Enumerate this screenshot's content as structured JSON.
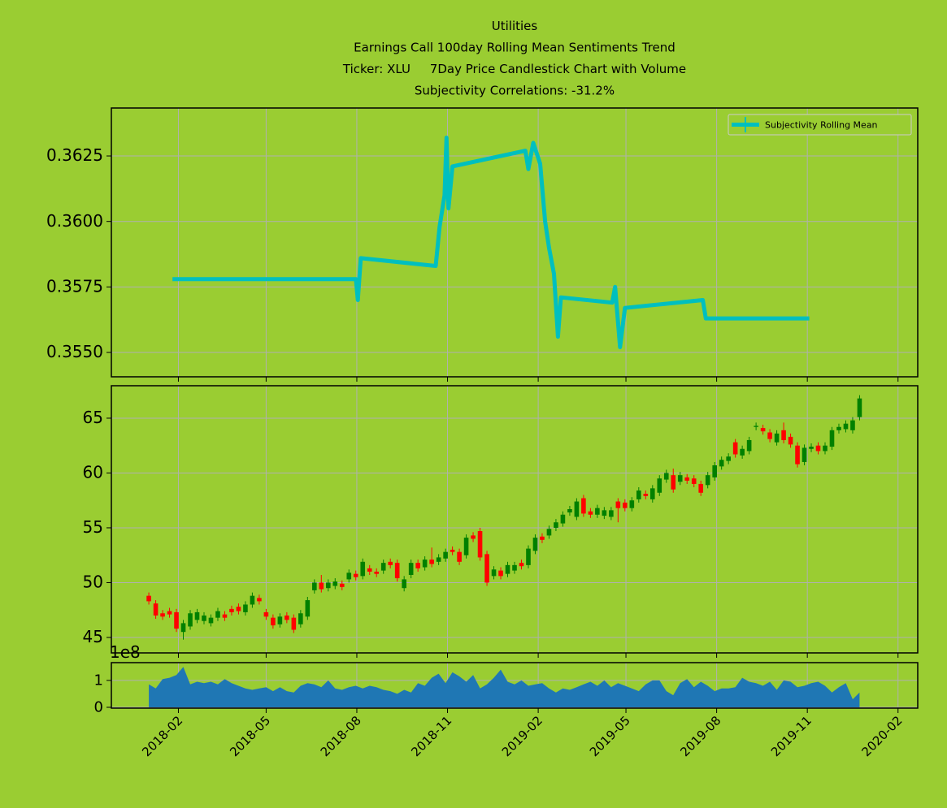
{
  "chart_data": [
    {
      "type": "line",
      "title": [
        "Utilities",
        "Earnings Call 100day Rolling Mean Sentiments Trend",
        "Ticker: XLU     7Day Price Candlestick Chart with Volume",
        "Subjectivity Correlations: -31.2%"
      ],
      "x": [
        "2018-01-26",
        "2018-07-31",
        "2018-08-02",
        "2018-08-05",
        "2018-10-20",
        "2018-10-24",
        "2018-10-29",
        "2018-10-31",
        "2018-11-02",
        "2018-11-06",
        "2019-01-19",
        "2019-01-22",
        "2019-01-27",
        "2019-02-03",
        "2019-02-08",
        "2019-02-12",
        "2019-02-17",
        "2019-02-21",
        "2019-02-24",
        "2019-04-17",
        "2019-04-20",
        "2019-04-25",
        "2019-04-30",
        "2019-07-18",
        "2019-07-21",
        "2019-11-03"
      ],
      "series": [
        {
          "name": "Subjectivity Rolling Mean",
          "color": "#00bfbf",
          "values": [
            0.3578,
            0.3578,
            0.357,
            0.3586,
            0.3583,
            0.3598,
            0.361,
            0.3632,
            0.3605,
            0.3621,
            0.3627,
            0.362,
            0.363,
            0.3622,
            0.36,
            0.359,
            0.358,
            0.3556,
            0.3571,
            0.3569,
            0.3575,
            0.3552,
            0.3567,
            0.357,
            0.3563,
            0.3563
          ]
        }
      ],
      "xlim": [
        "2017-11-25",
        "2020-02-21"
      ],
      "xticks": [
        "2018-02-01",
        "2018-05-01",
        "2018-08-01",
        "2018-11-01",
        "2019-02-01",
        "2019-05-01",
        "2019-08-01",
        "2019-11-01",
        "2020-02-01"
      ],
      "ylim": [
        0.35407,
        0.36433
      ],
      "yticks": [
        {
          "value": 0.355,
          "label": "0.3550"
        },
        0.3575,
        {
          "value": 0.36,
          "label": "0.3600"
        },
        0.3625
      ],
      "grid": true,
      "legend": "upper right"
    },
    {
      "type": "candlestick",
      "x": [
        "2018-01-02",
        "2018-01-09",
        "2018-01-16",
        "2018-01-23",
        "2018-01-30",
        "2018-02-06",
        "2018-02-13",
        "2018-02-20",
        "2018-02-27",
        "2018-03-06",
        "2018-03-13",
        "2018-03-20",
        "2018-03-27",
        "2018-04-03",
        "2018-04-10",
        "2018-04-17",
        "2018-04-24",
        "2018-05-01",
        "2018-05-08",
        "2018-05-15",
        "2018-05-22",
        "2018-05-29",
        "2018-06-05",
        "2018-06-12",
        "2018-06-19",
        "2018-06-26",
        "2018-07-03",
        "2018-07-10",
        "2018-07-17",
        "2018-07-24",
        "2018-07-31",
        "2018-08-07",
        "2018-08-14",
        "2018-08-21",
        "2018-08-28",
        "2018-09-04",
        "2018-09-11",
        "2018-09-18",
        "2018-09-25",
        "2018-10-02",
        "2018-10-09",
        "2018-10-16",
        "2018-10-23",
        "2018-10-30",
        "2018-11-06",
        "2018-11-13",
        "2018-11-20",
        "2018-11-27",
        "2018-12-04",
        "2018-12-11",
        "2018-12-18",
        "2018-12-25",
        "2019-01-01",
        "2019-01-08",
        "2019-01-15",
        "2019-01-22",
        "2019-01-29",
        "2019-02-05",
        "2019-02-12",
        "2019-02-19",
        "2019-02-26",
        "2019-03-05",
        "2019-03-12",
        "2019-03-19",
        "2019-03-26",
        "2019-04-02",
        "2019-04-09",
        "2019-04-16",
        "2019-04-23",
        "2019-04-30",
        "2019-05-07",
        "2019-05-14",
        "2019-05-21",
        "2019-05-28",
        "2019-06-04",
        "2019-06-11",
        "2019-06-18",
        "2019-06-25",
        "2019-07-02",
        "2019-07-09",
        "2019-07-16",
        "2019-07-23",
        "2019-07-30",
        "2019-08-06",
        "2019-08-13",
        "2019-08-20",
        "2019-08-27",
        "2019-09-03",
        "2019-09-10",
        "2019-09-17",
        "2019-09-24",
        "2019-10-01",
        "2019-10-08",
        "2019-10-15",
        "2019-10-22",
        "2019-10-29",
        "2019-11-05",
        "2019-11-12",
        "2019-11-19",
        "2019-11-26",
        "2019-12-03",
        "2019-12-10",
        "2019-12-17",
        "2019-12-24"
      ],
      "open": [
        48.8,
        48.1,
        47.2,
        47.4,
        47.3,
        45.5,
        46.0,
        46.6,
        46.5,
        46.3,
        46.8,
        47.1,
        47.6,
        47.8,
        47.3,
        48.0,
        48.6,
        47.3,
        46.8,
        46.2,
        47.0,
        46.8,
        46.2,
        46.9,
        49.3,
        50.0,
        49.5,
        49.7,
        49.9,
        50.3,
        50.8,
        50.6,
        51.3,
        51.0,
        51.1,
        51.9,
        51.8,
        49.5,
        50.7,
        51.8,
        51.4,
        52.1,
        51.9,
        52.2,
        53.0,
        52.8,
        52.5,
        54.3,
        54.7,
        52.6,
        50.6,
        51.1,
        50.8,
        51.1,
        51.8,
        51.6,
        52.9,
        54.2,
        54.3,
        55.0,
        55.4,
        56.4,
        56.0,
        57.7,
        56.5,
        56.2,
        56.1,
        56.0,
        57.4,
        57.3,
        56.8,
        57.6,
        58.1,
        57.6,
        58.2,
        59.4,
        59.8,
        59.2,
        59.6,
        59.5,
        59.0,
        58.9,
        59.6,
        60.6,
        61.1,
        62.8,
        61.6,
        62.0,
        64.2,
        64.1,
        63.7,
        62.8,
        63.9,
        63.3,
        62.5,
        61.0,
        62.2,
        62.5,
        62.0,
        62.4,
        63.9,
        64.0,
        63.9,
        65.1
      ],
      "high": [
        49.1,
        48.4,
        47.5,
        47.7,
        47.6,
        46.6,
        47.5,
        47.6,
        47.3,
        47.1,
        47.7,
        47.4,
        47.9,
        48.1,
        48.3,
        49.1,
        48.9,
        47.6,
        47.1,
        47.2,
        47.3,
        47.1,
        47.5,
        48.7,
        50.3,
        50.7,
        50.3,
        50.4,
        50.2,
        51.2,
        51.1,
        52.2,
        51.6,
        51.3,
        52.1,
        52.2,
        52.1,
        50.6,
        52.1,
        52.1,
        52.4,
        53.2,
        52.6,
        53.1,
        53.3,
        53.1,
        54.4,
        54.6,
        55.0,
        52.9,
        51.5,
        51.4,
        51.9,
        51.9,
        52.1,
        53.4,
        54.4,
        54.5,
        55.2,
        55.8,
        56.5,
        57.0,
        57.7,
        58.0,
        56.8,
        57.1,
        56.9,
        56.9,
        57.7,
        57.6,
        57.8,
        58.7,
        58.4,
        58.9,
        59.8,
        60.3,
        60.4,
        60.1,
        59.9,
        59.8,
        59.3,
        60.1,
        61.0,
        61.5,
        61.8,
        63.1,
        62.5,
        63.3,
        64.6,
        64.4,
        64.0,
        63.9,
        64.6,
        63.6,
        62.8,
        62.6,
        62.7,
        62.8,
        62.8,
        64.2,
        64.5,
        64.8,
        65.1,
        67.1
      ],
      "low": [
        48.0,
        46.7,
        46.6,
        46.8,
        45.5,
        44.8,
        45.7,
        46.3,
        46.2,
        46.0,
        46.5,
        46.5,
        47.0,
        47.1,
        47.0,
        47.7,
        48.0,
        46.6,
        45.8,
        45.9,
        46.3,
        45.4,
        45.9,
        46.6,
        49.0,
        49.1,
        49.2,
        49.4,
        49.3,
        50.0,
        50.2,
        50.3,
        50.7,
        50.5,
        50.8,
        51.3,
        50.1,
        49.2,
        50.4,
        51.0,
        51.1,
        51.4,
        51.6,
        51.9,
        52.5,
        51.6,
        52.2,
        53.7,
        52.0,
        49.7,
        50.3,
        50.3,
        50.5,
        50.8,
        51.2,
        51.3,
        52.6,
        53.6,
        54.0,
        54.7,
        55.1,
        56.1,
        55.7,
        56.0,
        55.9,
        55.9,
        55.8,
        55.7,
        55.5,
        56.5,
        56.5,
        57.3,
        57.6,
        57.3,
        57.9,
        59.1,
        58.2,
        58.9,
        59.0,
        58.7,
        57.9,
        58.6,
        59.3,
        60.3,
        60.8,
        61.4,
        61.3,
        61.7,
        63.9,
        63.5,
        62.8,
        62.5,
        62.7,
        62.3,
        60.5,
        60.7,
        61.9,
        61.7,
        61.7,
        62.1,
        63.6,
        63.7,
        63.6,
        64.8
      ],
      "close": [
        48.3,
        47.0,
        46.9,
        47.1,
        45.8,
        46.3,
        47.2,
        47.3,
        47.0,
        46.8,
        47.4,
        46.8,
        47.3,
        47.4,
        48.0,
        48.8,
        48.3,
        46.9,
        46.1,
        46.9,
        46.6,
        45.7,
        47.2,
        48.4,
        50.0,
        49.4,
        50.0,
        50.1,
        49.6,
        50.9,
        50.5,
        51.9,
        51.0,
        50.8,
        51.8,
        51.6,
        50.4,
        50.3,
        51.8,
        51.3,
        52.1,
        51.7,
        52.3,
        52.8,
        52.8,
        51.9,
        54.1,
        54.0,
        52.3,
        50.0,
        51.2,
        50.6,
        51.6,
        51.6,
        51.5,
        53.1,
        54.1,
        53.9,
        54.9,
        55.5,
        56.2,
        56.7,
        57.4,
        56.3,
        56.2,
        56.8,
        56.6,
        56.6,
        56.8,
        56.8,
        57.5,
        58.4,
        57.9,
        58.6,
        59.5,
        60.0,
        58.5,
        59.8,
        59.3,
        59.0,
        58.2,
        59.8,
        60.7,
        61.2,
        61.5,
        61.7,
        62.2,
        63.0,
        64.3,
        63.8,
        63.1,
        63.6,
        63.0,
        62.6,
        60.8,
        62.3,
        62.4,
        62.0,
        62.5,
        63.9,
        64.2,
        64.5,
        64.8,
        66.8
      ],
      "up_color": "#008000",
      "down_color": "#ff0000",
      "xlim": [
        "2017-11-25",
        "2020-02-21"
      ],
      "xticks": [
        "2018-02-01",
        "2018-05-01",
        "2018-08-01",
        "2018-11-01",
        "2019-02-01",
        "2019-05-01",
        "2019-08-01",
        "2019-11-01",
        "2020-02-01"
      ],
      "ylim": [
        43.59,
        67.96
      ],
      "yticks": [
        45,
        50,
        55,
        60,
        65
      ],
      "grid": true
    },
    {
      "type": "area",
      "x": [
        "2018-01-02",
        "2018-01-09",
        "2018-01-16",
        "2018-01-23",
        "2018-01-30",
        "2018-02-06",
        "2018-02-13",
        "2018-02-20",
        "2018-02-27",
        "2018-03-06",
        "2018-03-13",
        "2018-03-20",
        "2018-03-27",
        "2018-04-03",
        "2018-04-10",
        "2018-04-17",
        "2018-04-24",
        "2018-05-01",
        "2018-05-08",
        "2018-05-15",
        "2018-05-22",
        "2018-05-29",
        "2018-06-05",
        "2018-06-12",
        "2018-06-19",
        "2018-06-26",
        "2018-07-03",
        "2018-07-10",
        "2018-07-17",
        "2018-07-24",
        "2018-07-31",
        "2018-08-07",
        "2018-08-14",
        "2018-08-21",
        "2018-08-28",
        "2018-09-04",
        "2018-09-11",
        "2018-09-18",
        "2018-09-25",
        "2018-10-02",
        "2018-10-09",
        "2018-10-16",
        "2018-10-23",
        "2018-10-30",
        "2018-11-06",
        "2018-11-13",
        "2018-11-20",
        "2018-11-27",
        "2018-12-04",
        "2018-12-11",
        "2018-12-18",
        "2018-12-25",
        "2019-01-01",
        "2019-01-08",
        "2019-01-15",
        "2019-01-22",
        "2019-01-29",
        "2019-02-05",
        "2019-02-12",
        "2019-02-19",
        "2019-02-26",
        "2019-03-05",
        "2019-03-12",
        "2019-03-19",
        "2019-03-26",
        "2019-04-02",
        "2019-04-09",
        "2019-04-16",
        "2019-04-23",
        "2019-04-30",
        "2019-05-07",
        "2019-05-14",
        "2019-05-21",
        "2019-05-28",
        "2019-06-04",
        "2019-06-11",
        "2019-06-18",
        "2019-06-25",
        "2019-07-02",
        "2019-07-09",
        "2019-07-16",
        "2019-07-23",
        "2019-07-30",
        "2019-08-06",
        "2019-08-13",
        "2019-08-20",
        "2019-08-27",
        "2019-09-03",
        "2019-09-10",
        "2019-09-17",
        "2019-09-24",
        "2019-10-01",
        "2019-10-08",
        "2019-10-15",
        "2019-10-22",
        "2019-10-29",
        "2019-11-05",
        "2019-11-12",
        "2019-11-19",
        "2019-11-26",
        "2019-12-03",
        "2019-12-10",
        "2019-12-17",
        "2019-12-24"
      ],
      "values": [
        0.85,
        0.7,
        1.05,
        1.1,
        1.2,
        1.5,
        0.85,
        0.95,
        0.9,
        0.95,
        0.85,
        1.05,
        0.9,
        0.8,
        0.7,
        0.65,
        0.7,
        0.75,
        0.6,
        0.75,
        0.6,
        0.55,
        0.8,
        0.9,
        0.85,
        0.75,
        1.0,
        0.7,
        0.65,
        0.75,
        0.8,
        0.7,
        0.8,
        0.75,
        0.65,
        0.6,
        0.5,
        0.65,
        0.55,
        0.9,
        0.8,
        1.1,
        1.25,
        0.9,
        1.3,
        1.15,
        0.95,
        1.2,
        0.7,
        0.85,
        1.1,
        1.4,
        0.95,
        0.85,
        1.0,
        0.8,
        0.85,
        0.9,
        0.7,
        0.55,
        0.7,
        0.65,
        0.75,
        0.85,
        0.95,
        0.8,
        1.0,
        0.75,
        0.9,
        0.8,
        0.7,
        0.6,
        0.85,
        1.0,
        1.0,
        0.6,
        0.45,
        0.9,
        1.05,
        0.75,
        0.95,
        0.8,
        0.6,
        0.7,
        0.7,
        0.75,
        1.1,
        0.95,
        0.9,
        0.8,
        0.95,
        0.65,
        1.0,
        0.95,
        0.75,
        0.8,
        0.9,
        0.95,
        0.8,
        0.55,
        0.75,
        0.9,
        0.3,
        0.55
      ],
      "color": "#1f77b4",
      "y_offset_label": "1e8",
      "xlim": [
        "2017-11-25",
        "2020-02-21"
      ],
      "xticks": [
        {
          "value": "2018-02-01",
          "label": "2018-02"
        },
        {
          "value": "2018-05-01",
          "label": "2018-05"
        },
        {
          "value": "2018-08-01",
          "label": "2018-08"
        },
        {
          "value": "2018-11-01",
          "label": "2018-11"
        },
        {
          "value": "2019-02-01",
          "label": "2019-02"
        },
        {
          "value": "2019-05-01",
          "label": "2019-05"
        },
        {
          "value": "2019-08-01",
          "label": "2019-08"
        },
        {
          "value": "2019-11-01",
          "label": "2019-11"
        },
        {
          "value": "2020-02-01",
          "label": "2020-02"
        }
      ],
      "ylim": [
        -0.03,
        1.66
      ],
      "yticks": [
        0,
        1
      ],
      "grid": true
    }
  ]
}
